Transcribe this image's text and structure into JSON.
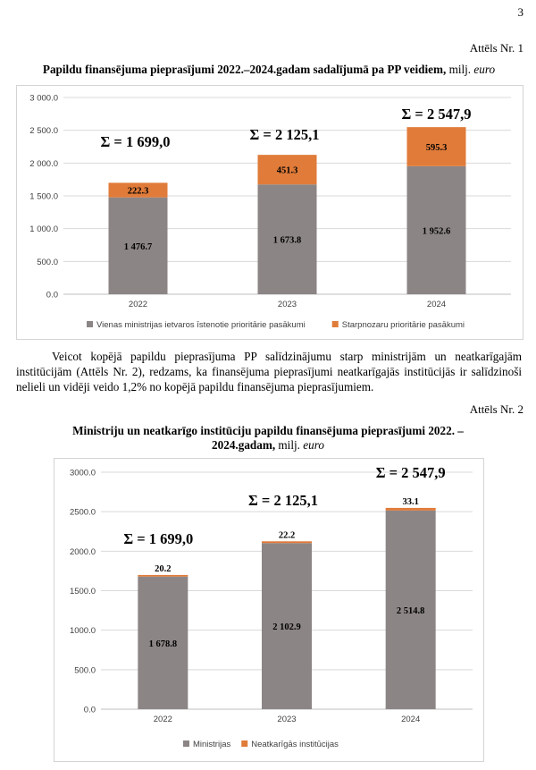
{
  "page_number": "3",
  "fig1": {
    "label": "Attēls Nr. 1",
    "title": "Papildu finansējuma pieprasījumi 2022.–2024.gadam sadalījumā pa PP veidiem,",
    "unit_text": " milj. ",
    "unit_italic": "euro"
  },
  "paragraph": "Veicot kopējā papildu pieprasījuma PP salīdzinājumu starp ministrijām un neatkarīgajām institūcijām (Attēls Nr. 2), redzams, ka finansējuma pieprasījumi neatkarīgajās institūcijās ir salīdzinoši nelieli un vidēji veido 1,2% no kopējā papildu finansējuma pieprasījumiem.",
  "fig2": {
    "label": "Attēls Nr. 2",
    "title": "Ministriju un neatkarīgo institūciju papildu finansējuma pieprasījumi 2022. – 2024.gadam,",
    "unit_text": " milj. ",
    "unit_italic": "euro"
  },
  "colors": {
    "gray": "#8c8585",
    "orange": "#e07b39",
    "grid": "#d9d9d9",
    "axis": "#bfbfbf"
  },
  "chart_data": [
    {
      "type": "bar",
      "stacked": true,
      "categories": [
        "2022",
        "2023",
        "2024"
      ],
      "ylim": [
        0,
        3000
      ],
      "yticks": [
        0,
        500,
        1000,
        1500,
        2000,
        2500,
        3000
      ],
      "ytick_labels": [
        "0.0",
        "500.0",
        "1 000.0",
        "1 500.0",
        "2 000.0",
        "2 500.0",
        "3 000.0"
      ],
      "grid": true,
      "legend_position": "bottom",
      "series": [
        {
          "name": "Vienas ministrijas ietvaros īstenotie prioritārie pasākumi",
          "values": [
            1476.7,
            1673.8,
            1952.6
          ],
          "labels": [
            "1 476.7",
            "1 673.8",
            "1 952.6"
          ],
          "color": "#8c8585"
        },
        {
          "name": "Starpnozaru prioritārie pasākumi",
          "values": [
            222.3,
            451.3,
            595.3
          ],
          "labels": [
            "222.3",
            "451.3",
            "595.3"
          ],
          "color": "#e07b39"
        }
      ],
      "totals": [
        "Σ = 1 699,0",
        "Σ = 2 125,1",
        "Σ = 2 547,9"
      ]
    },
    {
      "type": "bar",
      "stacked": true,
      "categories": [
        "2022",
        "2023",
        "2024"
      ],
      "ylim": [
        0,
        3000
      ],
      "yticks": [
        0,
        500,
        1000,
        1500,
        2000,
        2500,
        3000
      ],
      "ytick_labels": [
        "0.0",
        "500.0",
        "1000.0",
        "1500.0",
        "2000.0",
        "2500.0",
        "3000.0"
      ],
      "grid": true,
      "legend_position": "bottom",
      "series": [
        {
          "name": "Ministrijas",
          "values": [
            1678.8,
            2102.9,
            2514.8
          ],
          "labels": [
            "1 678.8",
            "2 102.9",
            "2 514.8"
          ],
          "color": "#8c8585"
        },
        {
          "name": "Neatkarīgās institūcijas",
          "values": [
            20.2,
            22.2,
            33.1
          ],
          "labels": [
            "20.2",
            "22.2",
            "33.1"
          ],
          "color": "#e07b39"
        }
      ],
      "totals": [
        "Σ = 1 699,0",
        "Σ = 2 125,1",
        "Σ = 2 547,9"
      ]
    }
  ]
}
